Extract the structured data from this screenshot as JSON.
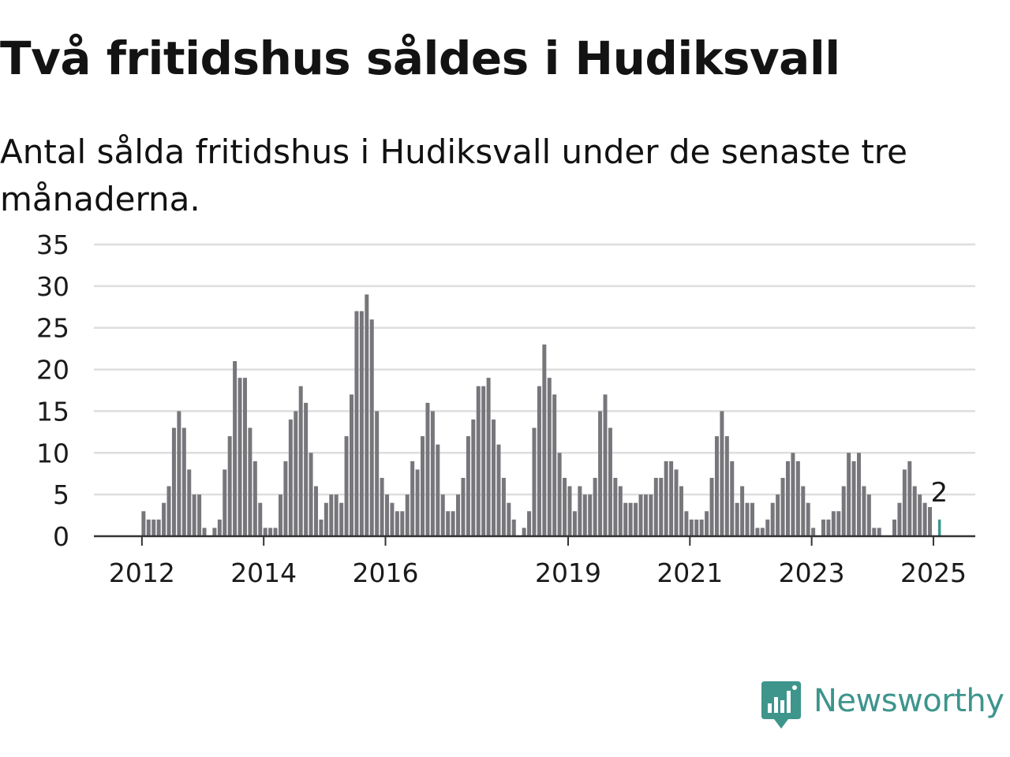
{
  "header": {
    "title": "Två fritidshus såldes i Hudiksvall",
    "subtitle": "Antal sålda fritidshus i Hudiksvall under de senaste tre månaderna."
  },
  "brand": {
    "name": "Newsworthy",
    "color": "#3d958c",
    "icon": "newsworthy-logo-icon"
  },
  "colors": {
    "bar": "#77767b",
    "highlight": "#3d958c",
    "grid": "#dedede",
    "axis": "#333333"
  },
  "chart_data": {
    "type": "bar",
    "y_ticks": [
      0,
      5,
      10,
      15,
      20,
      25,
      30,
      35
    ],
    "x_ticks": [
      {
        "label": "2012",
        "date": "2012-01"
      },
      {
        "label": "2014",
        "date": "2014-01"
      },
      {
        "label": "2016",
        "date": "2016-01"
      },
      {
        "label": "2019",
        "date": "2019-01"
      },
      {
        "label": "2021",
        "date": "2021-01"
      },
      {
        "label": "2023",
        "date": "2023-01"
      },
      {
        "label": "2025",
        "date": "2025-01"
      }
    ],
    "ylim": [
      0,
      35
    ],
    "grid": true,
    "start": "2011-04",
    "values": [
      0,
      0,
      0,
      0,
      0,
      0,
      0,
      0,
      0,
      3,
      2,
      2,
      2,
      4,
      6,
      13,
      15,
      13,
      8,
      5,
      5,
      1,
      0,
      1,
      2,
      8,
      12,
      21,
      19,
      19,
      13,
      9,
      4,
      1,
      1,
      1,
      5,
      9,
      14,
      15,
      18,
      16,
      10,
      6,
      2,
      4,
      5,
      5,
      4,
      12,
      17,
      27,
      27,
      29,
      26,
      15,
      7,
      5,
      4,
      3,
      3,
      5,
      9,
      8,
      12,
      16,
      15,
      11,
      5,
      3,
      3,
      5,
      7,
      12,
      14,
      18,
      18,
      19,
      14,
      11,
      7,
      4,
      2,
      0,
      1,
      3,
      13,
      18,
      23,
      19,
      17,
      10,
      7,
      6,
      3,
      6,
      5,
      5,
      7,
      15,
      17,
      13,
      7,
      6,
      4,
      4,
      4,
      5,
      5,
      5,
      7,
      7,
      9,
      9,
      8,
      6,
      3,
      2,
      2,
      2,
      3,
      7,
      12,
      15,
      12,
      9,
      4,
      6,
      4,
      4,
      1,
      1,
      2,
      4,
      5,
      7,
      9,
      10,
      9,
      6,
      4,
      1,
      0,
      2,
      2,
      3,
      3,
      6,
      10,
      9,
      10,
      6,
      5,
      1,
      1,
      0,
      0,
      2,
      4,
      8,
      9,
      6,
      5,
      4,
      3.5,
      0,
      2
    ],
    "highlight_last": true,
    "annotation": "2"
  }
}
